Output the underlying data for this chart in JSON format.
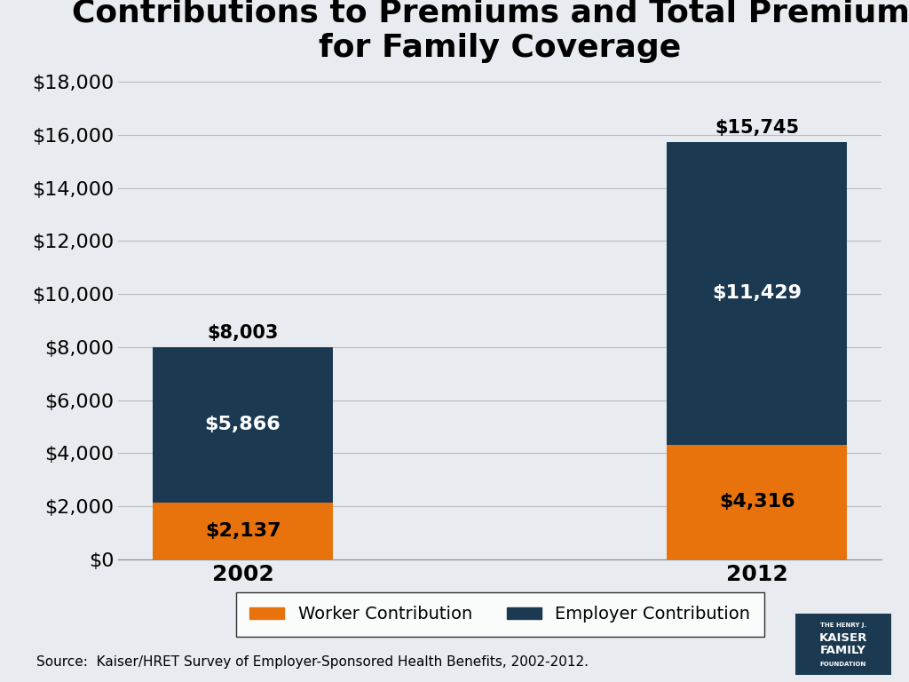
{
  "title": "Average Annual Worker  and Employer\nContributions to Premiums and Total Premiums\nfor Family Coverage",
  "categories": [
    "2002",
    "2012"
  ],
  "worker_values": [
    2137,
    4316
  ],
  "employer_values": [
    5866,
    11429
  ],
  "total_labels": [
    "$8,003",
    "$15,745"
  ],
  "worker_labels": [
    "$2,137",
    "$4,316"
  ],
  "employer_labels": [
    "$5,866",
    "$11,429"
  ],
  "worker_color": "#E8720C",
  "employer_color": "#1B3A52",
  "background_color": "#E8ECF0",
  "ylim": [
    0,
    18000
  ],
  "yticks": [
    0,
    2000,
    4000,
    6000,
    8000,
    10000,
    12000,
    14000,
    16000,
    18000
  ],
  "ytick_labels": [
    "$0",
    "$2,000",
    "$4,000",
    "$6,000",
    "$8,000",
    "$10,000",
    "$12,000",
    "$14,000",
    "$16,000",
    "$18,000"
  ],
  "legend_worker": "Worker Contribution",
  "legend_employer": "Employer Contribution",
  "source_text": "Source:  Kaiser/HRET Survey of Employer-Sponsored Health Benefits, 2002-2012.",
  "title_fontsize": 26,
  "axis_label_fontsize": 16,
  "bar_label_fontsize": 16,
  "total_label_fontsize": 15,
  "legend_fontsize": 14,
  "source_fontsize": 11
}
